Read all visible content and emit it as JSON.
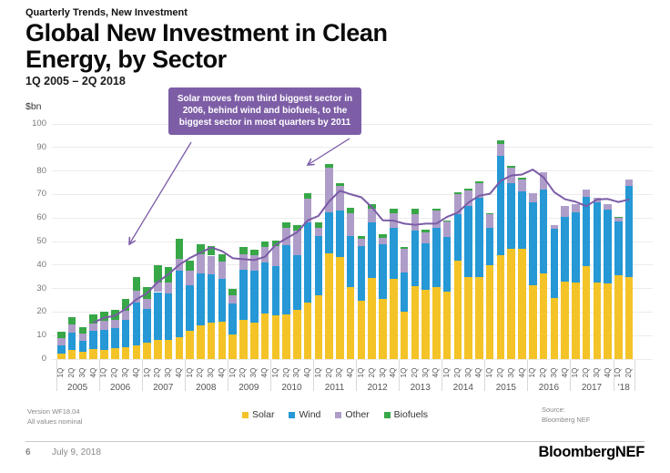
{
  "header": {
    "kicker": "Quarterly Trends, New Investment",
    "title": "Global New Investment in Clean Energy, by Sector",
    "subtitle": "1Q 2005 – 2Q 2018"
  },
  "axis": {
    "unit": "$bn"
  },
  "callout": {
    "text": "Solar moves from third biggest sector in 2006, behind wind and biofuels, to the biggest sector in most quarters by 2011",
    "bg_color": "#7D5EA6"
  },
  "notes": {
    "version_line1": "Version WF18.04",
    "version_line2": "All values nominal",
    "source_line1": "Source:",
    "source_line2": "Bloomberg NEF"
  },
  "footer": {
    "page": "6",
    "date": "July 9, 2018",
    "brand": "BloombergNEF"
  },
  "chart_data": {
    "type": "bar",
    "stacked": true,
    "title": "Global New Investment in Clean Energy, by Sector",
    "unit": "$bn",
    "ylim": [
      0,
      100
    ],
    "y_ticks": [
      0,
      10,
      20,
      30,
      40,
      50,
      60,
      70,
      80,
      90,
      100
    ],
    "grid": true,
    "legend_position": "bottom",
    "years": [
      "2005",
      "2006",
      "2007",
      "2008",
      "2009",
      "2010",
      "2011",
      "2012",
      "2013",
      "2014",
      "2015",
      "2016",
      "2017",
      "'18"
    ],
    "quarters_per_year": [
      4,
      4,
      4,
      4,
      4,
      4,
      4,
      4,
      4,
      4,
      4,
      4,
      4,
      2
    ],
    "quarter_label_cycle": [
      "1Q",
      "2Q",
      "3Q",
      "4Q"
    ],
    "series": [
      {
        "name": "Solar",
        "color": "#F4C327",
        "values": [
          2.5,
          3.7,
          3.2,
          4.4,
          3.8,
          4.5,
          5.0,
          6.0,
          7.0,
          8.0,
          8.0,
          9.5,
          12.0,
          14.5,
          15.5,
          16.0,
          10.5,
          16.5,
          15.5,
          19.5,
          18.5,
          19.0,
          21.0,
          24.0,
          27.0,
          45.0,
          43.5,
          30.5,
          25.0,
          34.5,
          25.5,
          34.0,
          20.0,
          31.0,
          29.5,
          30.5,
          28.7,
          42.0,
          35.0,
          35.0,
          40.0,
          44.0,
          47.0,
          47.0,
          31.5,
          36.5,
          26.0,
          33.0,
          32.5,
          39.5,
          32.5,
          32.0,
          35.5,
          35.0
        ]
      },
      {
        "name": "Wind",
        "color": "#2598D5",
        "values": [
          3.5,
          7.7,
          4.5,
          7.7,
          8.7,
          8.7,
          11.8,
          18.0,
          14.5,
          20.5,
          20.0,
          28.0,
          19.5,
          22.0,
          20.5,
          18.0,
          13.0,
          21.5,
          22.0,
          21.5,
          21.0,
          29.5,
          23.3,
          34.2,
          25.2,
          17.5,
          19.5,
          22.0,
          23.0,
          23.5,
          23.2,
          22.0,
          17.0,
          23.5,
          19.8,
          25.5,
          23.2,
          19.5,
          30.2,
          33.5,
          16.0,
          42.5,
          28.0,
          24.5,
          35.0,
          35.5,
          29.5,
          27.5,
          30.0,
          29.5,
          34.0,
          31.5,
          23.0,
          38.5
        ]
      },
      {
        "name": "Other",
        "color": "#AF9DC9",
        "values": [
          3.0,
          3.2,
          3.0,
          3.0,
          3.9,
          3.6,
          3.9,
          5.1,
          4.0,
          4.0,
          4.5,
          5.0,
          6.0,
          8.0,
          8.0,
          7.5,
          3.5,
          6.5,
          6.5,
          6.5,
          8.5,
          7.3,
          10.5,
          10.0,
          3.5,
          19.0,
          10.5,
          9.5,
          3.0,
          6.0,
          2.8,
          6.0,
          10.0,
          7.0,
          4.5,
          7.0,
          6.8,
          8.5,
          6.5,
          6.5,
          5.5,
          5.0,
          6.5,
          5.0,
          4.0,
          7.5,
          1.5,
          4.5,
          3.5,
          3.0,
          2.0,
          2.5,
          1.5,
          3.0
        ]
      },
      {
        "name": "Biofuels",
        "color": "#37A747",
        "values": [
          2.5,
          3.4,
          2.8,
          3.9,
          3.6,
          4.2,
          4.8,
          5.9,
          5.0,
          7.5,
          6.5,
          8.5,
          4.5,
          4.5,
          4.0,
          3.0,
          3.0,
          3.0,
          2.5,
          2.5,
          2.5,
          2.2,
          2.2,
          2.3,
          2.3,
          1.5,
          1.5,
          2.5,
          1.5,
          2.0,
          1.5,
          2.0,
          0.5,
          2.5,
          1.2,
          1.0,
          0.3,
          1.0,
          0.8,
          0.5,
          0.5,
          1.5,
          0.5,
          0.5,
          0,
          0,
          0,
          0,
          0,
          0,
          0,
          0,
          0.5,
          0
        ]
      }
    ],
    "trend_line": {
      "description": "unlabeled purple line (approx. 4-quarter moving average of total)",
      "color": "#7B5CA6",
      "start_index": 3,
      "values": [
        15.5,
        17.6,
        18.4,
        21.4,
        25.4,
        28.0,
        32.8,
        36.1,
        40.1,
        43.0,
        45.3,
        47.5,
        45.9,
        42.9,
        42.5,
        42.1,
        43.5,
        48.6,
        51.3,
        53.9,
        59.0,
        60.9,
        67.1,
        71.6,
        70.1,
        68.8,
        64.5,
        59.0,
        58.9,
        57.6,
        57.1,
        57.6,
        57.6,
        60.5,
        62.3,
        66.6,
        69.5,
        70.3,
        75.8,
        78.1,
        78.5,
        80.6,
        77.3,
        71.0,
        68.0,
        66.9,
        65.0,
        67.9,
        68.1,
        66.8,
        67.9
      ]
    },
    "annotation_arrows": [
      {
        "from": [
          210,
          156
        ],
        "to": [
          142,
          268
        ]
      },
      {
        "from": [
          384,
          152
        ],
        "to": [
          338,
          181
        ]
      }
    ]
  }
}
